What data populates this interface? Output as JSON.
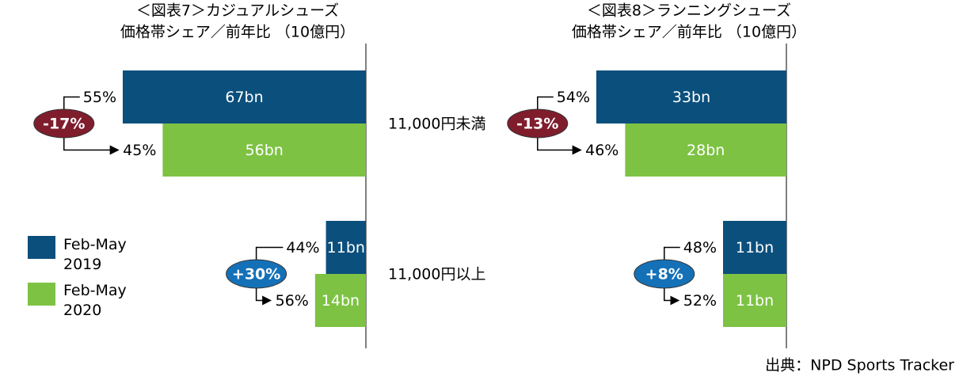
{
  "chart_data": [
    {
      "type": "bar",
      "orientation": "horizontal",
      "title": "＜図表7＞カジュアルシューズ",
      "subtitle": "価格帯シェア／前年比 （10億円）",
      "categories": [
        "11,000円未満",
        "11,000円以上"
      ],
      "series": [
        {
          "name": "Feb-May 2019",
          "color": "#0b4f7c",
          "values": [
            67,
            11
          ],
          "value_labels": [
            "67bn",
            "11bn"
          ],
          "shares": [
            55,
            44
          ],
          "share_labels": [
            "55%",
            "44%"
          ]
        },
        {
          "name": "Feb-May 2020",
          "color": "#7dc243",
          "values": [
            56,
            14
          ],
          "value_labels": [
            "56bn",
            "14bn"
          ],
          "shares": [
            45,
            56
          ],
          "share_labels": [
            "45%",
            "56%"
          ]
        }
      ],
      "changes": [
        -17,
        30
      ],
      "change_labels": [
        "-17%",
        "+30%"
      ]
    },
    {
      "type": "bar",
      "orientation": "horizontal",
      "title": "＜図表8＞ランニングシューズ",
      "subtitle": "価格帯シェア／前年比 （10億円）",
      "series": [
        {
          "color": "#0b4f7c",
          "values": [
            33,
            11
          ],
          "value_labels": [
            "33bn",
            "11bn"
          ],
          "shares": [
            54,
            48
          ],
          "share_labels": [
            "54%",
            "48%"
          ]
        },
        {
          "color": "#7dc243",
          "values": [
            28,
            11
          ],
          "value_labels": [
            "28bn",
            "11bn"
          ],
          "shares": [
            46,
            52
          ],
          "share_labels": [
            "46%",
            "52%"
          ]
        }
      ],
      "changes": [
        -13,
        8
      ],
      "change_labels": [
        "-13%",
        "+8%"
      ]
    }
  ],
  "source": "出典：NPD Sports Tracker"
}
